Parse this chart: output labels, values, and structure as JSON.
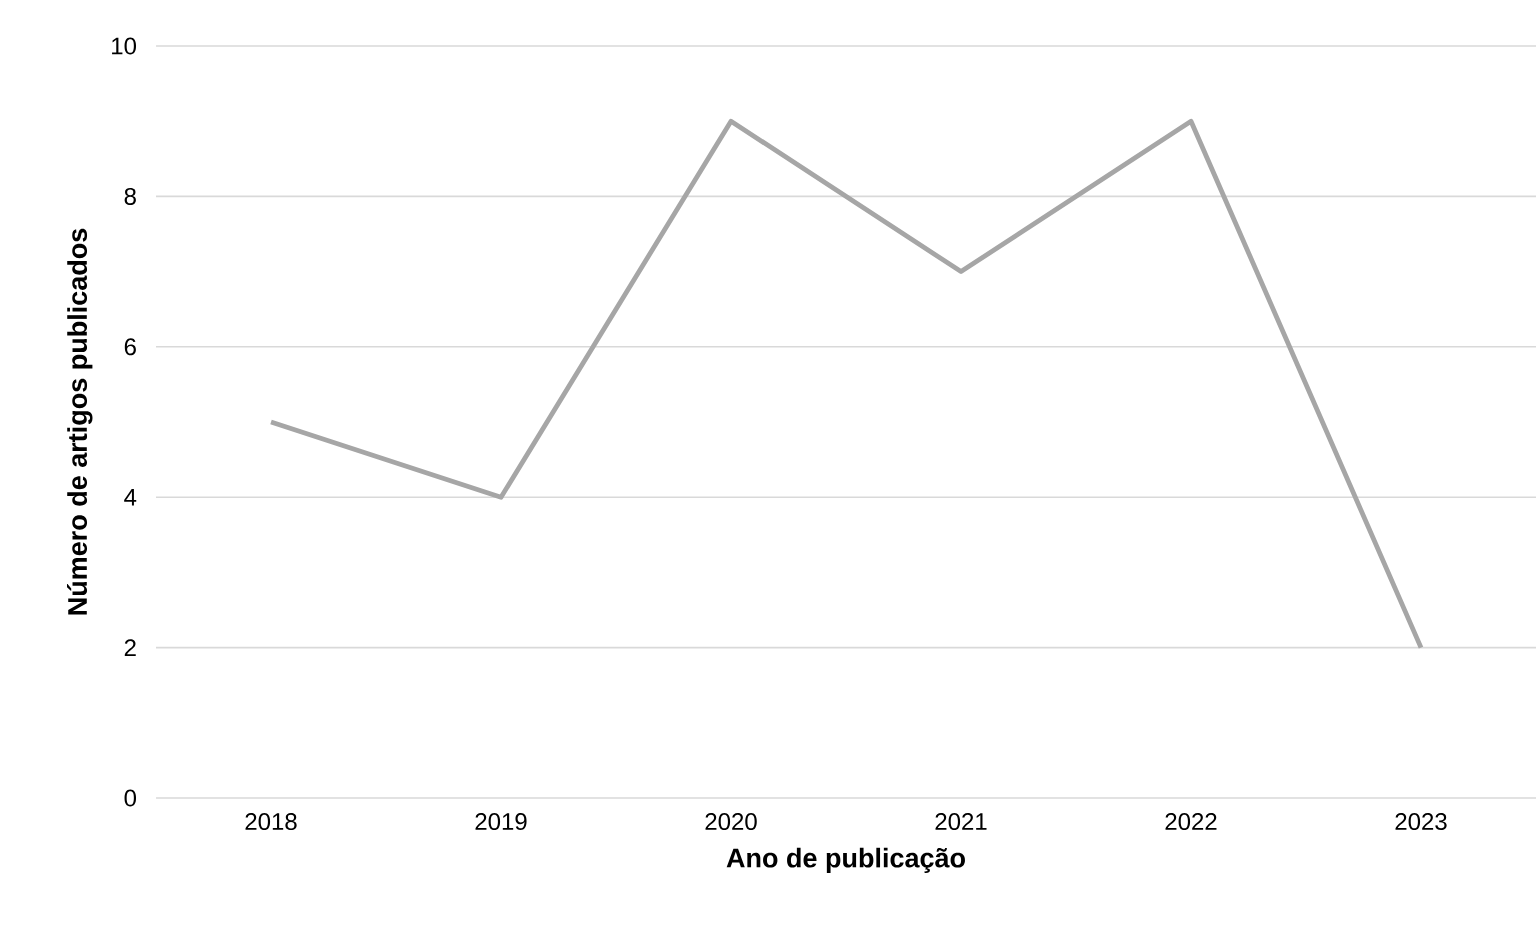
{
  "chart_data": {
    "type": "line",
    "xlabel": "Ano de publicação",
    "ylabel": "Número de artigos publicados",
    "categories": [
      "2018",
      "2019",
      "2020",
      "2021",
      "2022",
      "2023"
    ],
    "series": [
      {
        "color": "#a6a6a6",
        "values": [
          5,
          4,
          9,
          7,
          9,
          2
        ]
      }
    ],
    "ylim": [
      0,
      10
    ],
    "yticks": [
      0,
      2,
      4,
      6,
      8,
      10
    ],
    "grid": "y"
  }
}
